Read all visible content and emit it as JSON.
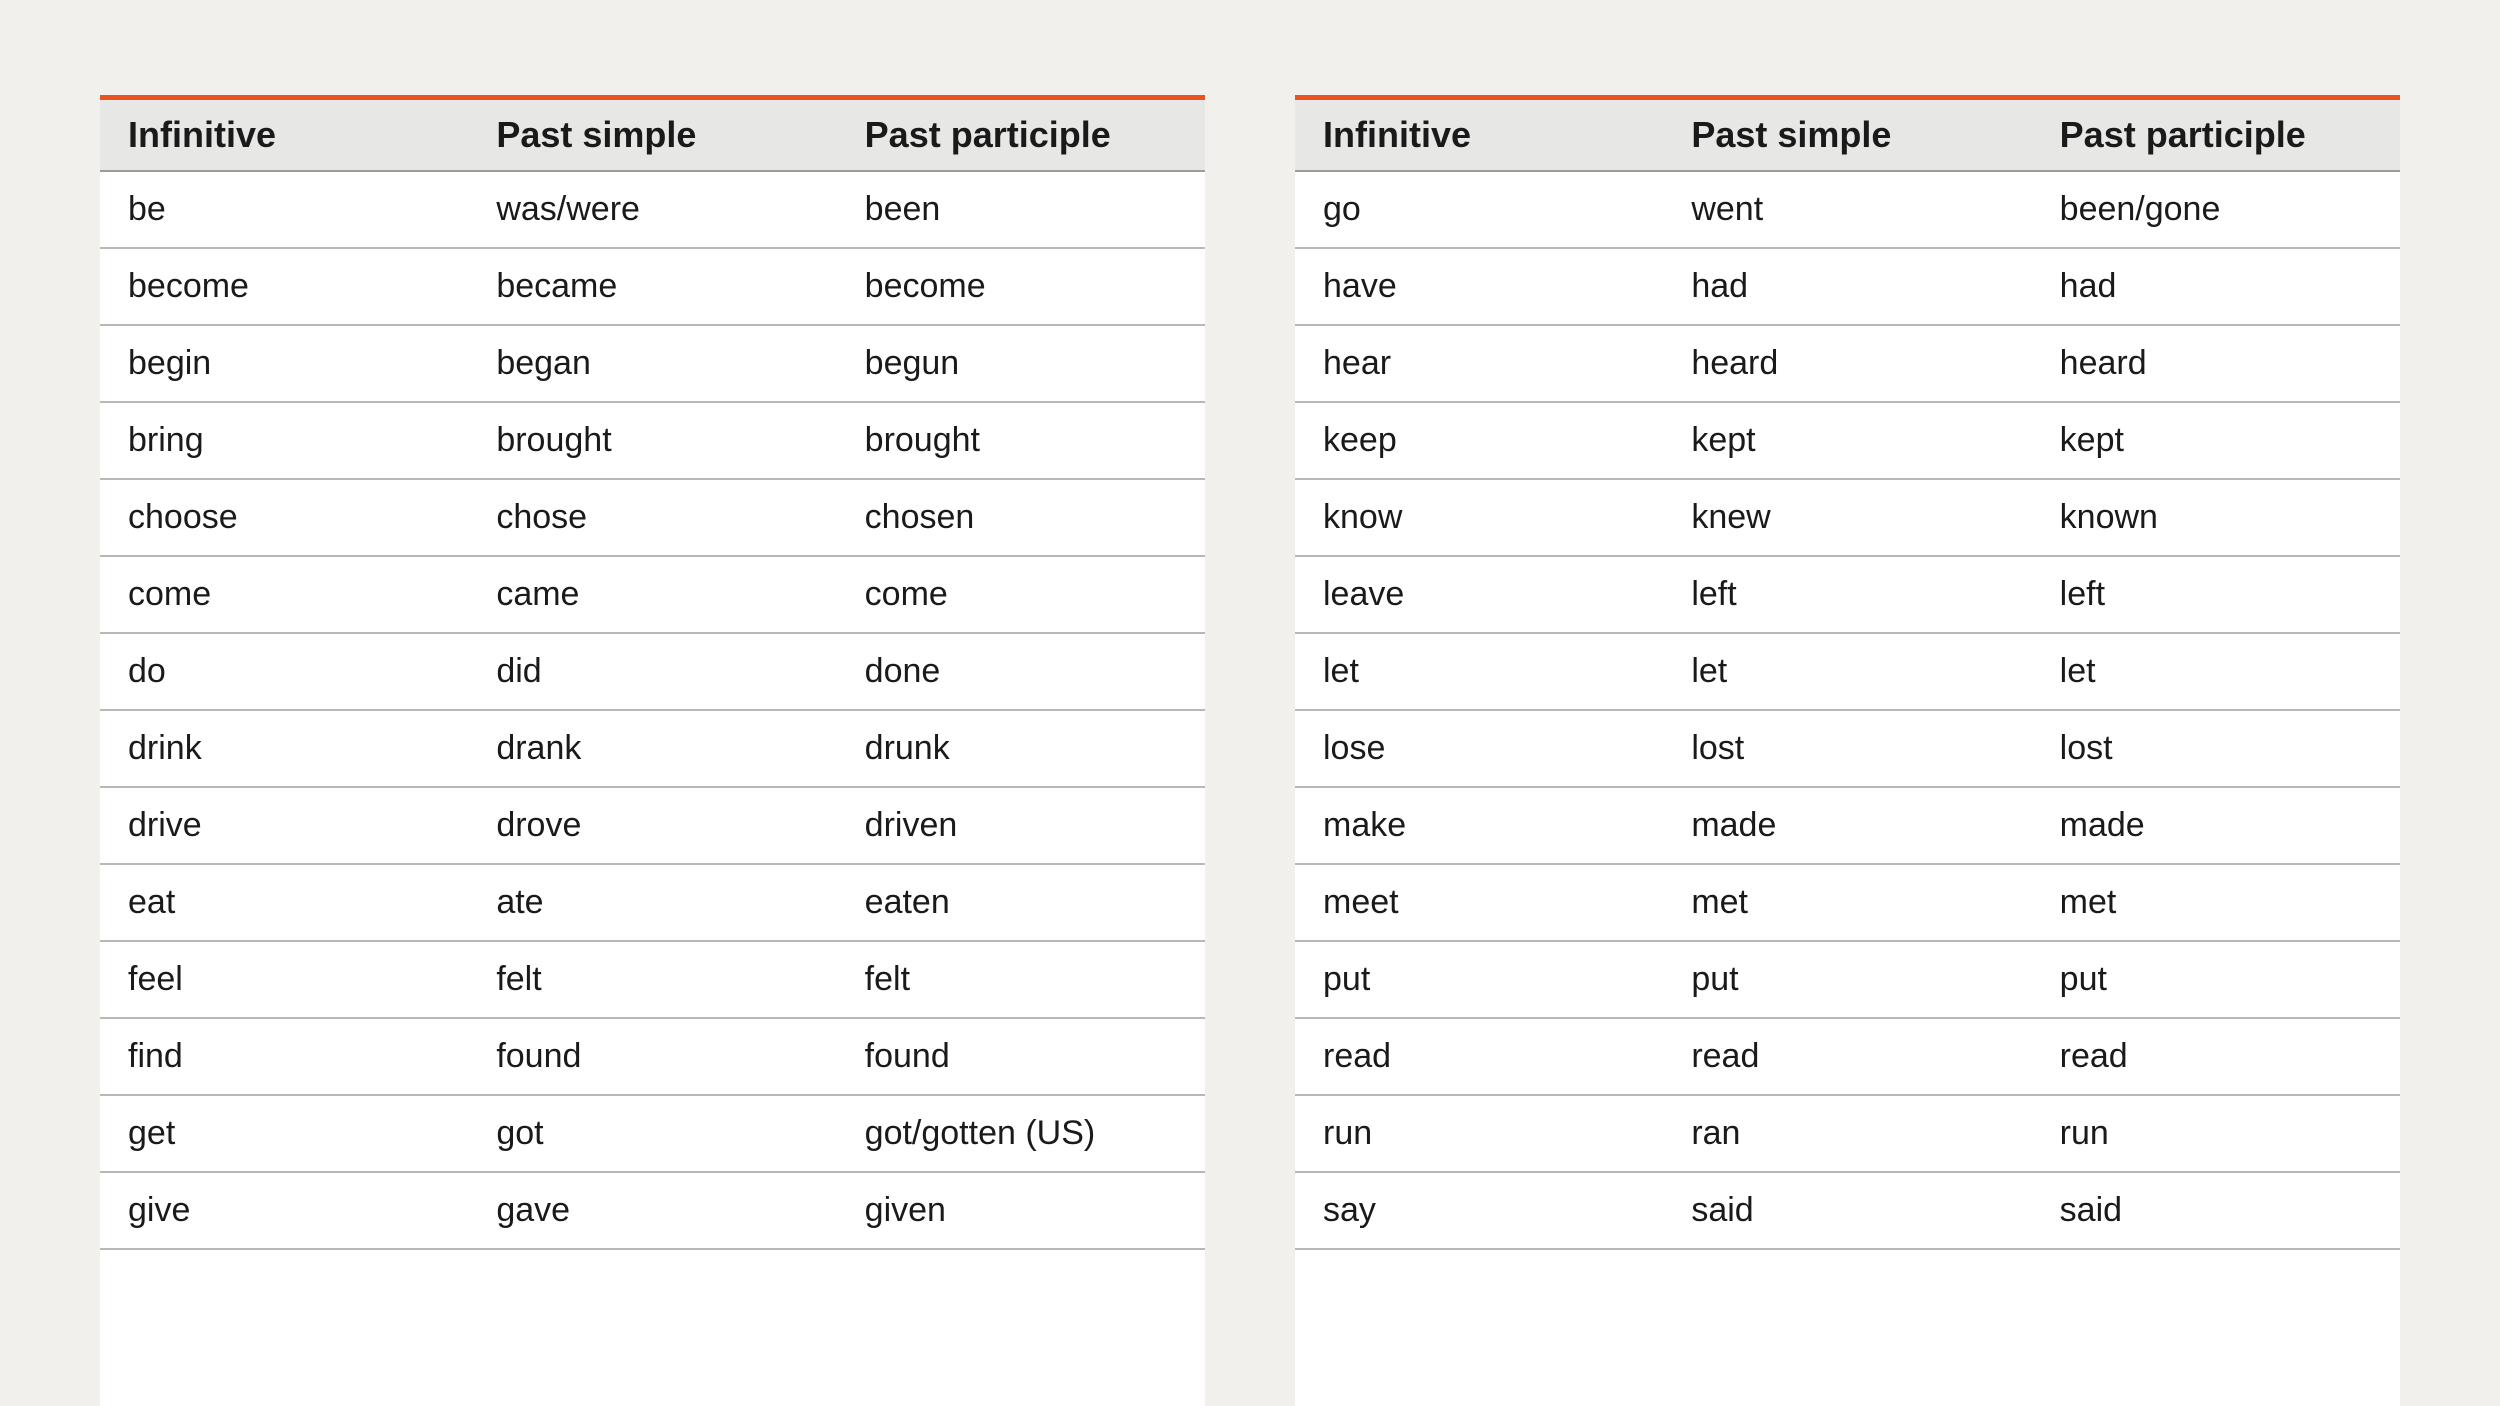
{
  "styles": {
    "page_background": "#f1f0ed",
    "table_background": "#ffffff",
    "accent_border": "#e9531f",
    "header_background": "#e7e7e5",
    "header_underline": "#9c9c9a",
    "row_border": "#b8b8b6",
    "text_color": "#1a1a1a",
    "header_fontsize": 36,
    "cell_fontsize": 34,
    "header_fontweight": 700
  },
  "tables": {
    "left": {
      "columns": [
        "Infinitive",
        "Past simple",
        "Past participle"
      ],
      "rows": [
        [
          "be",
          "was/were",
          "been"
        ],
        [
          "become",
          "became",
          "become"
        ],
        [
          "begin",
          "began",
          "begun"
        ],
        [
          "bring",
          "brought",
          "brought"
        ],
        [
          "choose",
          "chose",
          "chosen"
        ],
        [
          "come",
          "came",
          "come"
        ],
        [
          "do",
          "did",
          "done"
        ],
        [
          "drink",
          "drank",
          "drunk"
        ],
        [
          "drive",
          "drove",
          "driven"
        ],
        [
          "eat",
          "ate",
          "eaten"
        ],
        [
          "feel",
          "felt",
          "felt"
        ],
        [
          "find",
          "found",
          "found"
        ],
        [
          "get",
          "got",
          "got/gotten (US)"
        ],
        [
          "give",
          "gave",
          "given"
        ]
      ]
    },
    "right": {
      "columns": [
        "Infinitive",
        "Past simple",
        "Past participle"
      ],
      "rows": [
        [
          "go",
          "went",
          "been/gone"
        ],
        [
          "have",
          "had",
          "had"
        ],
        [
          "hear",
          "heard",
          "heard"
        ],
        [
          "keep",
          "kept",
          "kept"
        ],
        [
          "know",
          "knew",
          "known"
        ],
        [
          "leave",
          "left",
          "left"
        ],
        [
          "let",
          "let",
          "let"
        ],
        [
          "lose",
          "lost",
          "lost"
        ],
        [
          "make",
          "made",
          "made"
        ],
        [
          "meet",
          "met",
          "met"
        ],
        [
          "put",
          "put",
          "put"
        ],
        [
          "read",
          "read",
          "read"
        ],
        [
          "run",
          "ran",
          "run"
        ],
        [
          "say",
          "said",
          "said"
        ]
      ]
    }
  }
}
